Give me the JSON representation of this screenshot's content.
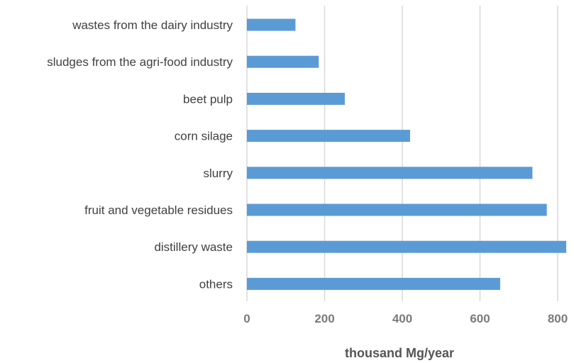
{
  "chart_data": {
    "type": "bar",
    "orientation": "horizontal",
    "categories": [
      "wastes from the dairy industry",
      "sludges from the agri-food industry",
      "beet pulp",
      "corn silage",
      "slurry",
      "fruit and vegetable residues",
      "distillery waste",
      "others"
    ],
    "values": [
      125,
      185,
      252,
      420,
      735,
      772,
      822,
      652
    ],
    "xlabel": "thousand Mg/year",
    "ylabel": "",
    "title": "",
    "xlim": [
      0,
      820
    ],
    "xticks": [
      0,
      200,
      400,
      600,
      800
    ],
    "xtick_labels": [
      "0",
      "200",
      "400",
      "600",
      "800"
    ],
    "grid": "vertical",
    "legend": "none",
    "bar_color": "#5b9bd5",
    "grid_color": "#d9d9d9"
  }
}
